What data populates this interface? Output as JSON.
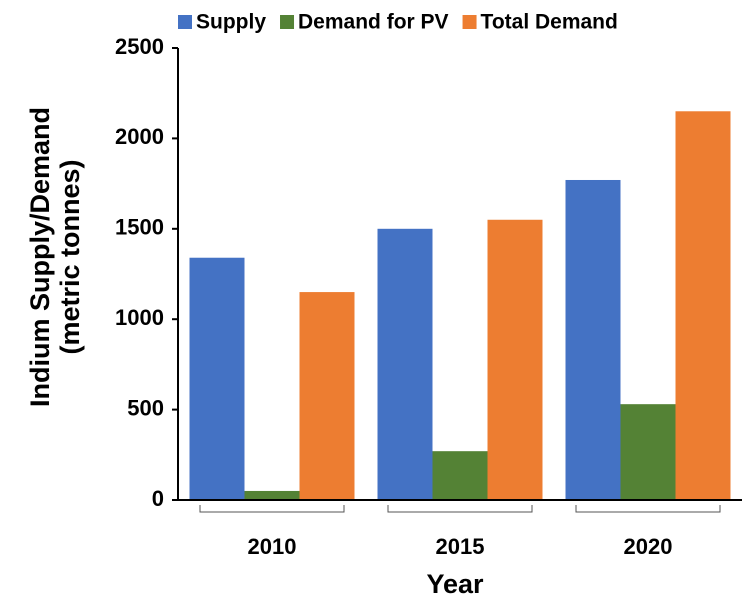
{
  "chart_data": {
    "type": "bar",
    "categories": [
      "2010",
      "2015",
      "2020"
    ],
    "series": [
      {
        "name": "Supply",
        "color": "#4472c4",
        "values": [
          1340,
          1500,
          1770
        ]
      },
      {
        "name": "Demand for PV",
        "color": "#548235",
        "values": [
          50,
          270,
          530
        ]
      },
      {
        "name": "Total Demand",
        "color": "#ed7d31",
        "values": [
          1150,
          1550,
          2150
        ]
      }
    ],
    "ylim": [
      0,
      2500
    ],
    "yticks": [
      0,
      500,
      1000,
      1500,
      2000,
      2500
    ],
    "y_label": [
      "Indium Supply/Demand",
      "(metric tonnes)"
    ],
    "x_label": "Year",
    "legend": "top",
    "grid": false
  }
}
